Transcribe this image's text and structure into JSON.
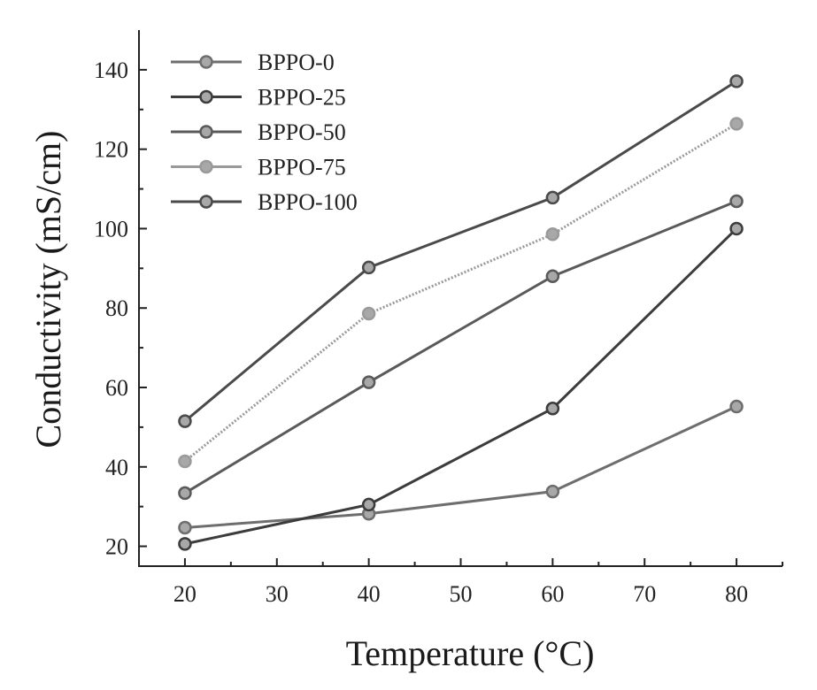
{
  "chart_data": {
    "type": "line",
    "title": "",
    "xlabel": "Temperature (°C)",
    "ylabel": "Conductivity (mS/cm)",
    "xlim": [
      15,
      85
    ],
    "ylim": [
      15,
      150
    ],
    "xticks": [
      20,
      30,
      40,
      50,
      60,
      70,
      80
    ],
    "yticks": [
      20,
      40,
      60,
      80,
      100,
      120,
      140
    ],
    "x": [
      20,
      40,
      60,
      80
    ],
    "legend_position": "top-left",
    "series": [
      {
        "name": "BPPO-0",
        "values": [
          24.7,
          28.2,
          33.8,
          55.2
        ],
        "color": "#6e6e6e"
      },
      {
        "name": "BPPO-25",
        "values": [
          20.6,
          30.5,
          54.7,
          100.0
        ],
        "color": "#3c3c3c"
      },
      {
        "name": "BPPO-50",
        "values": [
          33.4,
          61.3,
          88.0,
          106.9
        ],
        "color": "#5a5a5a"
      },
      {
        "name": "BPPO-75",
        "values": [
          41.4,
          78.6,
          98.6,
          126.4
        ],
        "color": "#9a9a9a"
      },
      {
        "name": "BPPO-100",
        "values": [
          51.5,
          90.2,
          107.8,
          137.1
        ],
        "color": "#4a4a4a"
      }
    ]
  }
}
